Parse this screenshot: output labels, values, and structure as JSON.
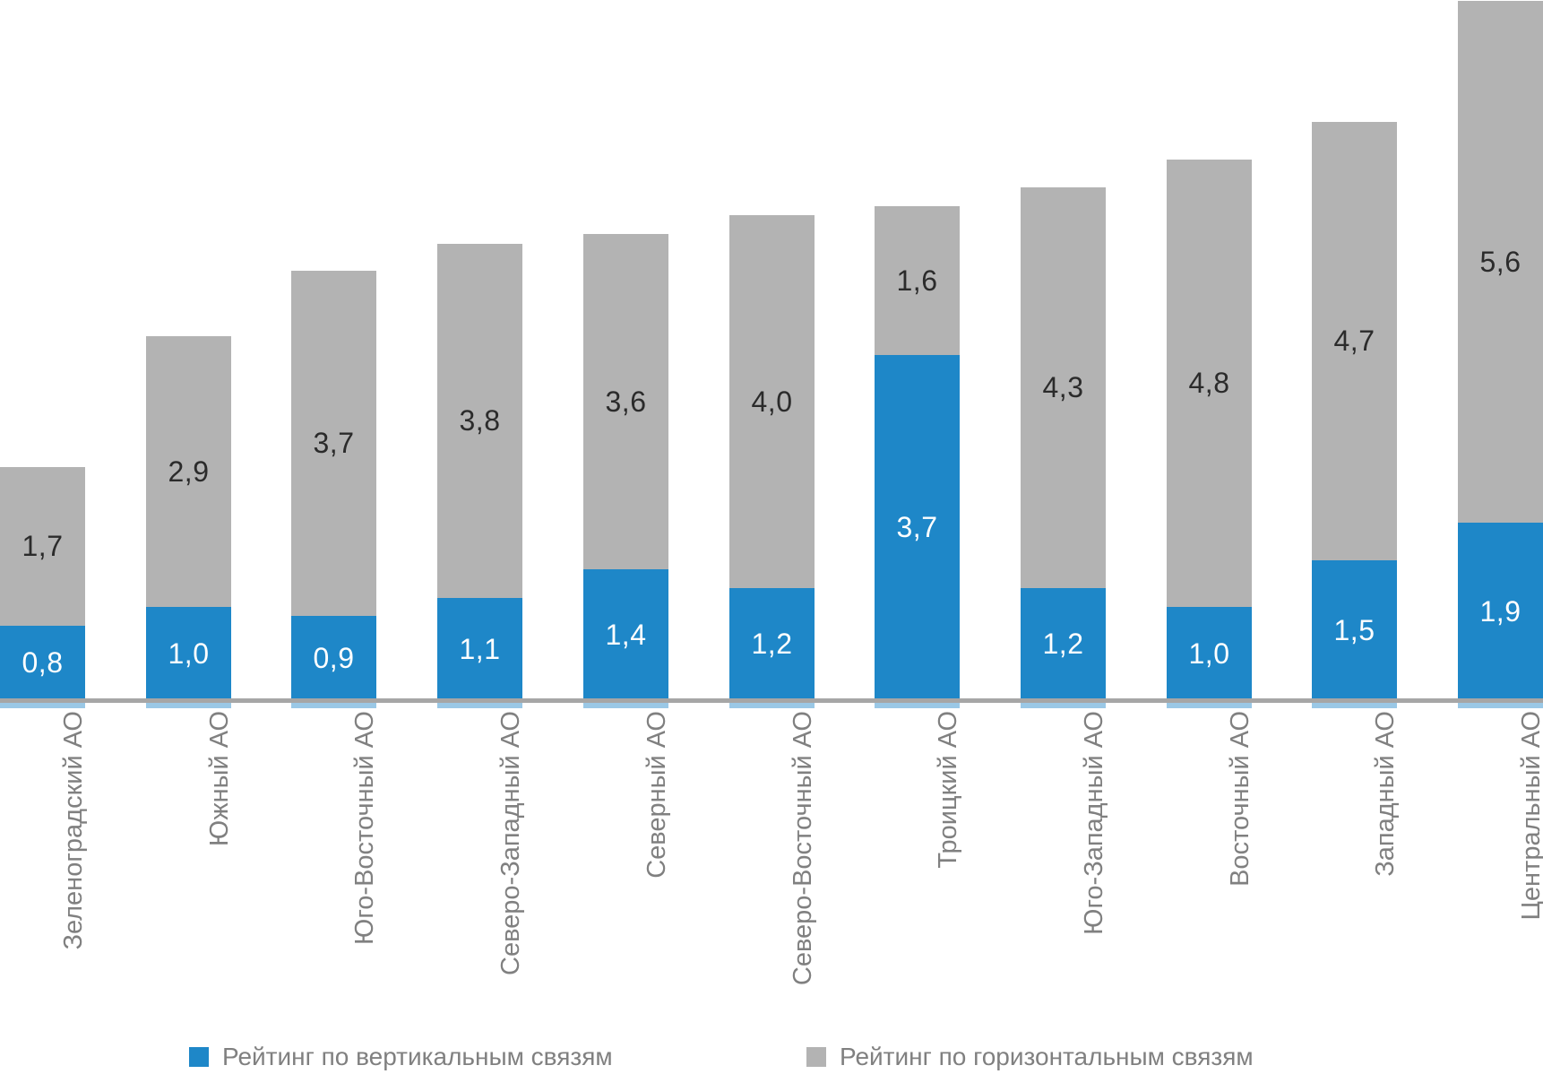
{
  "chart_data": {
    "type": "bar",
    "stacked": true,
    "orientation": "vertical",
    "title": "",
    "categories": [
      "Зеленоградский АО",
      "Южный АО",
      "Юго-Восточный АО",
      "Северо-Западный АО",
      "Северный АО",
      "Северо-Восточный АО",
      "Троицкий АО",
      "Юго-Западный АО",
      "Восточный АО",
      "Западный АО",
      "Центральный АО"
    ],
    "series": [
      {
        "name": "Рейтинг по вертикальным связям",
        "color": "#1E87C8",
        "label_color": "#FFFFFF",
        "values": [
          0.8,
          1.0,
          0.9,
          1.1,
          1.4,
          1.2,
          3.7,
          1.2,
          1.0,
          1.5,
          1.9
        ]
      },
      {
        "name": "Рейтинг по горизонтальным связям",
        "color": "#B3B3B3",
        "label_color": "#2B2B2B",
        "values": [
          1.7,
          2.9,
          3.7,
          3.8,
          3.6,
          4.0,
          1.6,
          4.3,
          4.8,
          4.7,
          5.6
        ]
      }
    ],
    "value_label_decimal_separator": ",",
    "legend_position": "bottom",
    "gridlines": false,
    "ylim": [
      0,
      7.55
    ],
    "axis_line_color": "#A6A6A6",
    "category_label_color": "#808080",
    "legend_text_color": "#808080"
  }
}
